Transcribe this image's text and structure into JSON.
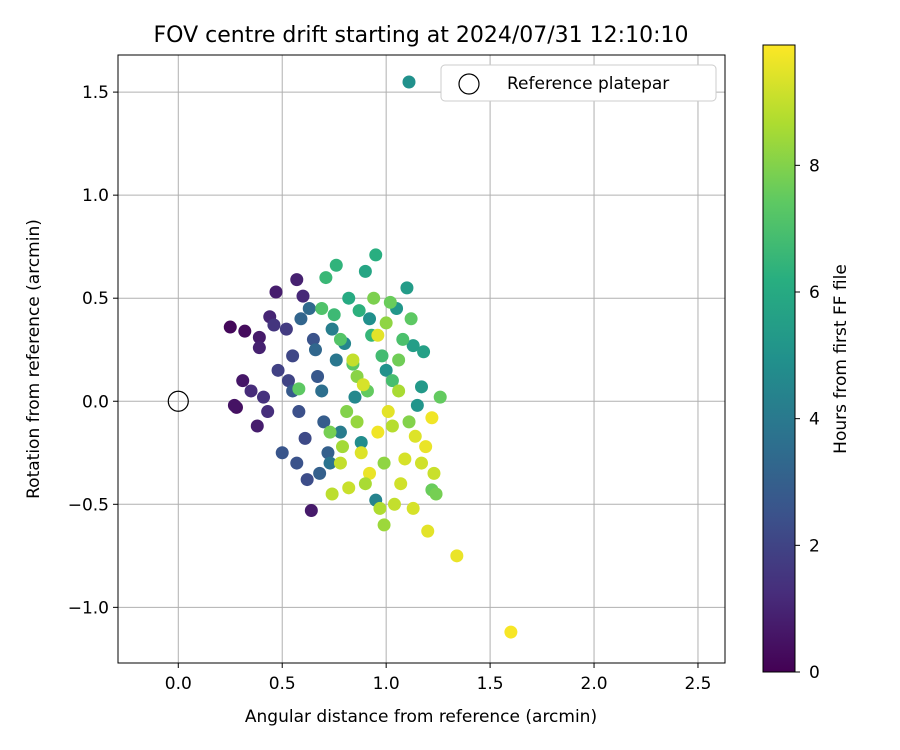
{
  "chart_data": {
    "type": "scatter",
    "title": "FOV centre drift starting at 2024/07/31 12:10:10",
    "xlabel": "Angular distance from reference (arcmin)",
    "ylabel": "Rotation from reference (arcmin)",
    "xlim": [
      -0.29,
      2.63
    ],
    "ylim": [
      -1.27,
      1.68
    ],
    "xticks": [
      0.0,
      0.5,
      1.0,
      1.5,
      2.0,
      2.5
    ],
    "xtick_labels": [
      "0.0",
      "0.5",
      "1.0",
      "1.5",
      "2.0",
      "2.5"
    ],
    "yticks": [
      -1.0,
      -0.5,
      0.0,
      0.5,
      1.0,
      1.5
    ],
    "ytick_labels": [
      "−1.0",
      "−0.5",
      "0.0",
      "0.5",
      "1.0",
      "1.5"
    ],
    "grid": true,
    "legend": {
      "placement": "upper right",
      "entries": [
        "",
        "Reference platepar"
      ]
    },
    "reference_point": {
      "x": 0.0,
      "y": 0.0,
      "marker": "hollow-circle"
    },
    "colorbar": {
      "label": "Hours from first FF file",
      "range": [
        0,
        9.9
      ],
      "ticks": [
        0,
        2,
        4,
        6,
        8
      ],
      "colormap": "viridis"
    },
    "series": [
      {
        "columns": [
          "x",
          "y",
          "hours"
        ],
        "points": [
          [
            0.25,
            0.36,
            0.2
          ],
          [
            0.28,
            -0.03,
            0.4
          ],
          [
            0.27,
            -0.02,
            0.5
          ],
          [
            0.31,
            0.1,
            0.6
          ],
          [
            0.32,
            0.34,
            0.3
          ],
          [
            0.39,
            0.31,
            0.7
          ],
          [
            0.39,
            0.26,
            0.9
          ],
          [
            0.38,
            -0.12,
            0.8
          ],
          [
            0.44,
            0.41,
            1.0
          ],
          [
            0.47,
            0.53,
            0.8
          ],
          [
            0.57,
            0.59,
            0.9
          ],
          [
            0.6,
            0.51,
            1.1
          ],
          [
            0.64,
            -0.53,
            0.7
          ],
          [
            0.62,
            -0.38,
            2.3
          ],
          [
            0.5,
            -0.25,
            2.6
          ],
          [
            0.46,
            0.37,
            1.5
          ],
          [
            0.52,
            0.35,
            1.7
          ],
          [
            0.35,
            0.05,
            1.2
          ],
          [
            0.41,
            0.02,
            1.4
          ],
          [
            0.43,
            -0.05,
            1.3
          ],
          [
            0.48,
            0.15,
            1.9
          ],
          [
            0.53,
            0.1,
            2.0
          ],
          [
            0.55,
            0.22,
            2.1
          ],
          [
            0.58,
            -0.05,
            2.4
          ],
          [
            0.61,
            -0.18,
            2.2
          ],
          [
            0.65,
            0.3,
            2.5
          ],
          [
            0.67,
            0.12,
            2.7
          ],
          [
            0.7,
            -0.1,
            2.9
          ],
          [
            0.72,
            -0.25,
            3.0
          ],
          [
            0.59,
            0.4,
            3.2
          ],
          [
            0.63,
            0.45,
            3.4
          ],
          [
            0.66,
            0.25,
            3.3
          ],
          [
            0.69,
            0.05,
            3.6
          ],
          [
            0.73,
            -0.3,
            3.8
          ],
          [
            0.76,
            0.2,
            3.9
          ],
          [
            0.78,
            -0.15,
            4.1
          ],
          [
            0.55,
            0.05,
            2.8
          ],
          [
            0.57,
            -0.3,
            2.5
          ],
          [
            0.68,
            -0.35,
            3.0
          ],
          [
            0.74,
            0.35,
            4.2
          ],
          [
            0.8,
            0.28,
            4.5
          ],
          [
            0.85,
            0.02,
            4.6
          ],
          [
            0.88,
            -0.2,
            4.8
          ],
          [
            0.92,
            0.4,
            4.9
          ],
          [
            0.95,
            -0.48,
            4.4
          ],
          [
            1.0,
            0.15,
            5.0
          ],
          [
            1.05,
            0.45,
            5.2
          ],
          [
            1.1,
            0.55,
            5.4
          ],
          [
            1.13,
            0.27,
            5.5
          ],
          [
            1.18,
            0.24,
            5.6
          ],
          [
            1.17,
            0.07,
            5.3
          ],
          [
            1.15,
            -0.02,
            5.1
          ],
          [
            0.9,
            0.63,
            5.8
          ],
          [
            0.95,
            0.71,
            6.2
          ],
          [
            0.76,
            0.66,
            6.4
          ],
          [
            0.71,
            0.6,
            6.6
          ],
          [
            0.82,
            0.5,
            6.0
          ],
          [
            0.87,
            0.44,
            6.3
          ],
          [
            0.93,
            0.32,
            6.5
          ],
          [
            0.98,
            0.22,
            6.8
          ],
          [
            1.03,
            0.1,
            6.9
          ],
          [
            1.08,
            0.3,
            7.0
          ],
          [
            0.75,
            0.42,
            6.7
          ],
          [
            0.69,
            0.45,
            7.1
          ],
          [
            0.78,
            0.3,
            7.2
          ],
          [
            0.84,
            0.18,
            7.3
          ],
          [
            0.91,
            0.05,
            7.5
          ],
          [
            1.02,
            0.48,
            7.6
          ],
          [
            1.12,
            0.4,
            7.4
          ],
          [
            1.06,
            0.2,
            7.7
          ],
          [
            0.58,
            0.06,
            7.4
          ],
          [
            0.73,
            -0.15,
            7.8
          ],
          [
            0.81,
            -0.05,
            8.0
          ],
          [
            0.86,
            0.12,
            8.1
          ],
          [
            0.94,
            0.5,
            7.9
          ],
          [
            1.0,
            0.38,
            8.2
          ],
          [
            1.26,
            0.02,
            7.5
          ],
          [
            1.22,
            -0.43,
            7.6
          ],
          [
            1.24,
            -0.45,
            7.8
          ],
          [
            0.99,
            -0.6,
            8.4
          ],
          [
            0.97,
            -0.52,
            8.7
          ],
          [
            1.04,
            -0.5,
            9.0
          ],
          [
            1.07,
            -0.4,
            9.2
          ],
          [
            1.13,
            -0.52,
            9.3
          ],
          [
            1.2,
            -0.63,
            9.5
          ],
          [
            1.34,
            -0.75,
            9.6
          ],
          [
            1.6,
            -1.12,
            9.8
          ],
          [
            0.82,
            -0.42,
            9.1
          ],
          [
            0.78,
            -0.3,
            9.0
          ],
          [
            0.74,
            -0.45,
            8.9
          ],
          [
            0.88,
            -0.25,
            9.4
          ],
          [
            0.92,
            -0.35,
            9.6
          ],
          [
            0.96,
            -0.15,
            9.7
          ],
          [
            1.01,
            -0.05,
            9.5
          ],
          [
            1.09,
            -0.28,
            9.3
          ],
          [
            1.14,
            -0.17,
            9.4
          ],
          [
            1.17,
            -0.3,
            9.2
          ],
          [
            1.19,
            -0.22,
            9.6
          ],
          [
            1.22,
            -0.08,
            9.7
          ],
          [
            1.23,
            -0.35,
            9.1
          ],
          [
            0.84,
            0.2,
            9.0
          ],
          [
            0.89,
            0.08,
            9.3
          ],
          [
            0.96,
            0.32,
            9.5
          ],
          [
            1.03,
            -0.12,
            8.8
          ],
          [
            1.06,
            0.05,
            8.6
          ],
          [
            0.86,
            -0.1,
            8.3
          ],
          [
            0.79,
            -0.22,
            8.5
          ],
          [
            0.9,
            -0.4,
            8.6
          ],
          [
            0.99,
            -0.3,
            8.2
          ],
          [
            1.11,
            -0.1,
            8.0
          ]
        ]
      }
    ]
  }
}
